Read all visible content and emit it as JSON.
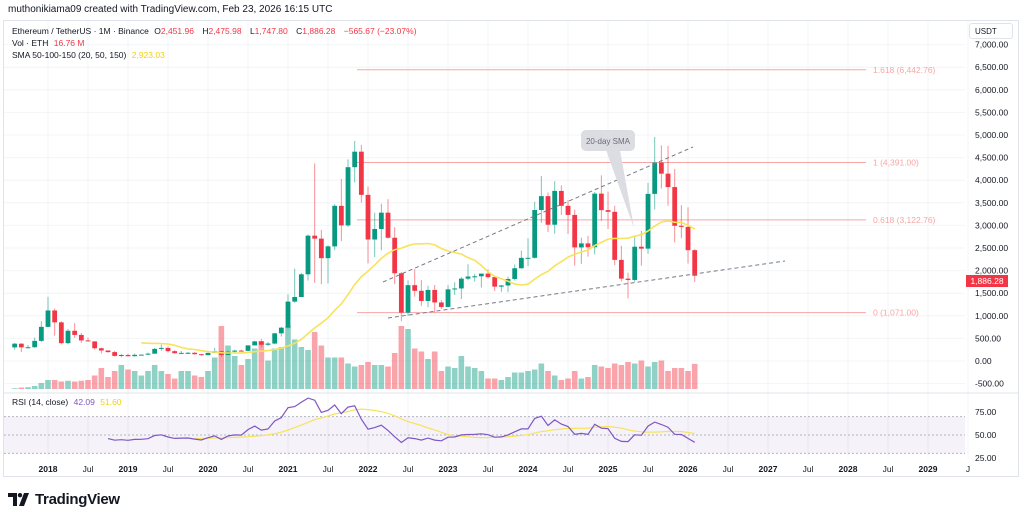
{
  "credit": "muthonikiama09 created with TradingView.com, Feb 23, 2026 16:15 UTC",
  "legend": {
    "symbol": "Ethereum / TetherUS · 1M · Binance",
    "o_label": "O",
    "o": "2,451.96",
    "h_label": "H",
    "h": "2,475.98",
    "l_label": "L",
    "l": "1,747.80",
    "c_label": "C",
    "c": "1,886.28",
    "change": "−565.67 (−23.07%)",
    "vol_label": "Vol · ETH",
    "vol": "16.76 M",
    "sma_label": "SMA 50-100-150 (20, 50, 150)",
    "sma": "2,923.03"
  },
  "currency": "USDT",
  "last_price_label": "1,886.28",
  "price_axis": [
    "7,000.00",
    "6,500.00",
    "6,000.00",
    "5,500.00",
    "5,000.00",
    "4,500.00",
    "4,000.00",
    "3,500.00",
    "3,000.00",
    "2,500.00",
    "2,000.00",
    "1,500.00",
    "1,000.00",
    "500.00",
    "0.00",
    "-500.00"
  ],
  "rsi": {
    "label": "RSI (14, close)",
    "value": "42.09",
    "ma_value": "51.60",
    "axis": [
      "75.00",
      "50.00",
      "25.00"
    ]
  },
  "time_axis": [
    "2018",
    "Jul",
    "2019",
    "Jul",
    "2020",
    "Jul",
    "2021",
    "Jul",
    "2022",
    "Jul",
    "2023",
    "Jul",
    "2024",
    "Jul",
    "2025",
    "Jul",
    "2026",
    "Jul",
    "2027",
    "Jul",
    "2028",
    "Jul",
    "2029",
    "J"
  ],
  "fib_levels": [
    {
      "ratio": 1.618,
      "price": 6442.76,
      "label": "1.618 (6,442.76)"
    },
    {
      "ratio": 1,
      "price": 4391.0,
      "label": "1 (4,391.00)"
    },
    {
      "ratio": 0.618,
      "price": 3122.76,
      "label": "0.618 (3,122.76)"
    },
    {
      "ratio": 0,
      "price": 1071.0,
      "label": "0 (1,071.00)"
    }
  ],
  "callout": "20-day SMA",
  "logo": "TradingView",
  "colors": {
    "up": "#089981",
    "down": "#f23645",
    "sma": "#f7e35a",
    "rsi": "#7e57c2",
    "fib": "#f7a6a6"
  },
  "chart_data": {
    "type": "candlestick",
    "interval": "1M",
    "ylim": [
      -500,
      7000
    ],
    "start_month": "2017-08",
    "columns": [
      "open",
      "high",
      "low",
      "close",
      "volume_millions_eth"
    ],
    "candles": [
      [
        301,
        400,
        250,
        383,
        0.5
      ],
      [
        383,
        394,
        197,
        302,
        1
      ],
      [
        302,
        355,
        277,
        305,
        1.2
      ],
      [
        305,
        520,
        290,
        445,
        2
      ],
      [
        445,
        880,
        420,
        755,
        4
      ],
      [
        755,
        1420,
        750,
        1118,
        6
      ],
      [
        1118,
        1160,
        560,
        855,
        6
      ],
      [
        855,
        880,
        365,
        395,
        5
      ],
      [
        395,
        710,
        368,
        669,
        5.5
      ],
      [
        669,
        838,
        511,
        577,
        5
      ],
      [
        577,
        620,
        400,
        455,
        5.5
      ],
      [
        455,
        515,
        431,
        433,
        6
      ],
      [
        433,
        435,
        255,
        282,
        9
      ],
      [
        282,
        300,
        167,
        232,
        14
      ],
      [
        232,
        235,
        183,
        197,
        8
      ],
      [
        197,
        225,
        101,
        113,
        12
      ],
      [
        113,
        158,
        81,
        133,
        16
      ],
      [
        133,
        160,
        100,
        106,
        13
      ],
      [
        106,
        165,
        102,
        136,
        12
      ],
      [
        136,
        145,
        127,
        141,
        9
      ],
      [
        141,
        185,
        136,
        162,
        12
      ],
      [
        162,
        288,
        160,
        268,
        16
      ],
      [
        268,
        366,
        230,
        290,
        12
      ],
      [
        290,
        320,
        190,
        218,
        10
      ],
      [
        218,
        238,
        163,
        172,
        7
      ],
      [
        172,
        223,
        156,
        180,
        12
      ],
      [
        180,
        198,
        153,
        182,
        12
      ],
      [
        182,
        194,
        140,
        151,
        9
      ],
      [
        151,
        155,
        116,
        129,
        8
      ],
      [
        129,
        183,
        127,
        179,
        12
      ],
      [
        179,
        288,
        180,
        217,
        21
      ],
      [
        217,
        231,
        86,
        133,
        42
      ],
      [
        133,
        228,
        130,
        206,
        29
      ],
      [
        206,
        250,
        178,
        230,
        22
      ],
      [
        230,
        253,
        215,
        225,
        16
      ],
      [
        225,
        350,
        222,
        345,
        20
      ],
      [
        345,
        445,
        354,
        434,
        27
      ],
      [
        434,
        488,
        308,
        359,
        32
      ],
      [
        359,
        420,
        332,
        386,
        19
      ],
      [
        386,
        622,
        373,
        612,
        27
      ],
      [
        612,
        755,
        540,
        737,
        28
      ],
      [
        737,
        1476,
        714,
        1314,
        42
      ],
      [
        1314,
        2042,
        1290,
        1416,
        33
      ],
      [
        1416,
        1950,
        1440,
        1918,
        28
      ],
      [
        1918,
        2800,
        1780,
        2773,
        26
      ],
      [
        2773,
        4372,
        1728,
        2707,
        38
      ],
      [
        2707,
        2900,
        1700,
        2275,
        29
      ],
      [
        2275,
        2560,
        1718,
        2536,
        21
      ],
      [
        2536,
        3470,
        2450,
        3433,
        21
      ],
      [
        3433,
        4028,
        2650,
        3000,
        21
      ],
      [
        3000,
        4460,
        2965,
        4288,
        17
      ],
      [
        4288,
        4868,
        3950,
        4631,
        15
      ],
      [
        4631,
        4780,
        3500,
        3676,
        16
      ],
      [
        3676,
        3860,
        2159,
        2688,
        18
      ],
      [
        2688,
        3280,
        2300,
        2921,
        16
      ],
      [
        2921,
        3480,
        2450,
        3282,
        16
      ],
      [
        3282,
        3580,
        2710,
        2727,
        15
      ],
      [
        2727,
        2960,
        1700,
        1941,
        24
      ],
      [
        1941,
        1970,
        880,
        1070,
        42
      ],
      [
        1070,
        1785,
        1000,
        1678,
        40
      ],
      [
        1678,
        2030,
        1422,
        1553,
        27
      ],
      [
        1553,
        1790,
        1220,
        1328,
        25
      ],
      [
        1328,
        1663,
        1190,
        1572,
        20
      ],
      [
        1572,
        1680,
        1073,
        1295,
        25
      ],
      [
        1295,
        1350,
        1150,
        1196,
        12
      ],
      [
        1196,
        1680,
        1190,
        1585,
        15
      ],
      [
        1585,
        1743,
        1460,
        1605,
        14
      ],
      [
        1605,
        1857,
        1370,
        1822,
        22
      ],
      [
        1822,
        2140,
        1785,
        1869,
        15
      ],
      [
        1869,
        1930,
        1760,
        1874,
        14
      ],
      [
        1874,
        1935,
        1626,
        1933,
        12
      ],
      [
        1933,
        2030,
        1822,
        1856,
        7
      ],
      [
        1856,
        1880,
        1550,
        1645,
        7
      ],
      [
        1645,
        1682,
        1531,
        1671,
        6
      ],
      [
        1671,
        1865,
        1520,
        1815,
        8
      ],
      [
        1815,
        2135,
        1780,
        2052,
        11
      ],
      [
        2052,
        2445,
        2040,
        2282,
        11
      ],
      [
        2282,
        2717,
        2100,
        2283,
        12
      ],
      [
        2283,
        3523,
        2265,
        3340,
        13
      ],
      [
        3340,
        4093,
        3056,
        3647,
        17
      ],
      [
        3647,
        3730,
        2853,
        3015,
        12
      ],
      [
        3015,
        3977,
        2817,
        3763,
        9
      ],
      [
        3763,
        3887,
        3231,
        3433,
        6
      ],
      [
        3433,
        3563,
        2810,
        3232,
        7
      ],
      [
        3232,
        3350,
        2111,
        2513,
        12
      ],
      [
        2513,
        2728,
        2150,
        2602,
        7
      ],
      [
        2602,
        2770,
        2310,
        2518,
        8
      ],
      [
        2518,
        3740,
        2357,
        3703,
        16
      ],
      [
        3703,
        4108,
        3100,
        3337,
        15
      ],
      [
        3337,
        3745,
        2920,
        3300,
        14
      ],
      [
        3300,
        3437,
        2120,
        2237,
        17
      ],
      [
        2237,
        2550,
        1760,
        1822,
        16
      ],
      [
        1822,
        1955,
        1385,
        1793,
        18
      ],
      [
        1793,
        2740,
        1750,
        2528,
        17
      ],
      [
        2528,
        2880,
        2111,
        2486,
        19
      ],
      [
        2486,
        3941,
        2373,
        3697,
        15
      ],
      [
        3697,
        4956,
        3355,
        4391,
        18
      ],
      [
        4391,
        4770,
        3815,
        4145,
        19
      ],
      [
        4145,
        4760,
        3435,
        3848,
        12
      ],
      [
        3848,
        4250,
        2623,
        2992,
        14
      ],
      [
        2992,
        3447,
        2716,
        2967,
        14
      ],
      [
        2967,
        3400,
        2157,
        2452,
        12
      ],
      [
        2451.96,
        2475.98,
        1747.8,
        1886.28,
        16.76
      ]
    ],
    "indicators": [
      "Volume",
      "SMA 20",
      "RSI 14 with SMA 14"
    ]
  }
}
